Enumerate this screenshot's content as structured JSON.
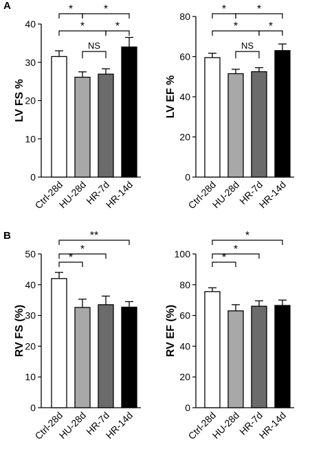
{
  "panels": [
    {
      "label": "A"
    },
    {
      "label": "B"
    }
  ],
  "significance": {
    "star": "*",
    "double_star": "**",
    "ns": "NS"
  },
  "chart_data": [
    {
      "type": "bar",
      "panel": "A",
      "ylabel": "LV FS %",
      "ylim": [
        0,
        40
      ],
      "yticks": [
        0,
        10,
        20,
        30,
        40
      ],
      "categories": [
        "Ctrl-28d",
        "HU-28d",
        "HR-7d",
        "HR-14d"
      ],
      "values": [
        31.5,
        26.1,
        26.9,
        34.0
      ],
      "errors": [
        1.5,
        1.4,
        1.4,
        2.5
      ],
      "bar_colors": [
        "#ffffff",
        "#a8a8a8",
        "#6b6b6b",
        "#000000"
      ],
      "comparisons": [
        {
          "from": 0,
          "to": 1,
          "label": "*"
        },
        {
          "from": 1,
          "to": 3,
          "label": "*"
        },
        {
          "from": 0,
          "to": 2,
          "label": "*"
        },
        {
          "from": 2,
          "to": 3,
          "label": "*"
        },
        {
          "from": 1,
          "to": 2,
          "label": "NS"
        }
      ]
    },
    {
      "type": "bar",
      "panel": "A",
      "ylabel": "LV EF %",
      "ylim": [
        0,
        80
      ],
      "yticks": [
        0,
        20,
        40,
        60,
        80
      ],
      "categories": [
        "Ctrl-28d",
        "HU-28d",
        "HR-7d",
        "HR-14d"
      ],
      "values": [
        59.5,
        51.5,
        52.5,
        63.0
      ],
      "errors": [
        2.2,
        2.2,
        2.0,
        3.3
      ],
      "bar_colors": [
        "#ffffff",
        "#a8a8a8",
        "#6b6b6b",
        "#000000"
      ],
      "comparisons": [
        {
          "from": 0,
          "to": 1,
          "label": "*"
        },
        {
          "from": 1,
          "to": 3,
          "label": "*"
        },
        {
          "from": 0,
          "to": 2,
          "label": "*"
        },
        {
          "from": 2,
          "to": 3,
          "label": "*"
        },
        {
          "from": 1,
          "to": 2,
          "label": "NS"
        }
      ]
    },
    {
      "type": "bar",
      "panel": "B",
      "ylabel": "RV FS (%)",
      "ylim": [
        0,
        50
      ],
      "yticks": [
        0,
        10,
        20,
        30,
        40,
        50
      ],
      "categories": [
        "Ctrl-28d",
        "HU-28d",
        "HR-7d",
        "HR-14d"
      ],
      "values": [
        42.0,
        32.6,
        33.5,
        32.7
      ],
      "errors": [
        2.0,
        2.7,
        2.8,
        1.8
      ],
      "bar_colors": [
        "#ffffff",
        "#a8a8a8",
        "#6b6b6b",
        "#000000"
      ],
      "comparisons": [
        {
          "from": 0,
          "to": 1,
          "label": "*"
        },
        {
          "from": 0,
          "to": 2,
          "label": "*"
        },
        {
          "from": 0,
          "to": 3,
          "label": "**"
        }
      ]
    },
    {
      "type": "bar",
      "panel": "B",
      "ylabel": "RV EF (%)",
      "ylim": [
        0,
        100
      ],
      "yticks": [
        0,
        20,
        40,
        60,
        80,
        100
      ],
      "categories": [
        "Ctrl-28d",
        "HU-28d",
        "HR-7d",
        "HR-14d"
      ],
      "values": [
        75.5,
        63.0,
        66.0,
        66.5
      ],
      "errors": [
        2.5,
        4.0,
        3.5,
        3.5
      ],
      "bar_colors": [
        "#ffffff",
        "#a8a8a8",
        "#6b6b6b",
        "#000000"
      ],
      "comparisons": [
        {
          "from": 0,
          "to": 1,
          "label": "*"
        },
        {
          "from": 0,
          "to": 2,
          "label": "*"
        },
        {
          "from": 0,
          "to": 3,
          "label": "*"
        }
      ]
    }
  ]
}
